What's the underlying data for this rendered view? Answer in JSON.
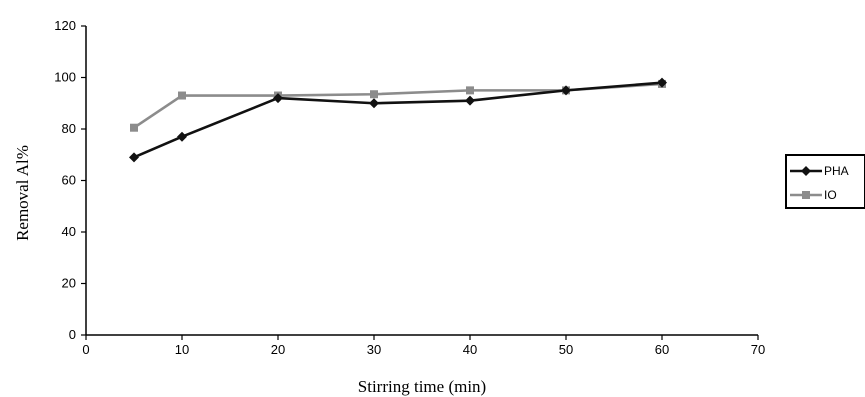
{
  "chart_data": {
    "type": "line",
    "xlabel": "Stirring time (min)",
    "ylabel": "Removal Al%",
    "xlim": [
      0,
      70
    ],
    "ylim": [
      0,
      120
    ],
    "xticks": [
      0,
      10,
      20,
      30,
      40,
      50,
      60,
      70
    ],
    "yticks": [
      0,
      20,
      40,
      60,
      80,
      100,
      120
    ],
    "grid": false,
    "legend_position": "right",
    "series": [
      {
        "name": "PHA",
        "color": "#111111",
        "marker": "diamond",
        "x": [
          5,
          10,
          20,
          30,
          40,
          50,
          60
        ],
        "y": [
          69,
          77,
          92,
          90,
          91,
          95,
          98
        ]
      },
      {
        "name": "IO",
        "color": "#8c8c8c",
        "marker": "square",
        "x": [
          5,
          10,
          20,
          30,
          40,
          50,
          60
        ],
        "y": [
          80.5,
          93,
          93,
          93.5,
          95,
          95,
          97.5
        ]
      }
    ]
  }
}
